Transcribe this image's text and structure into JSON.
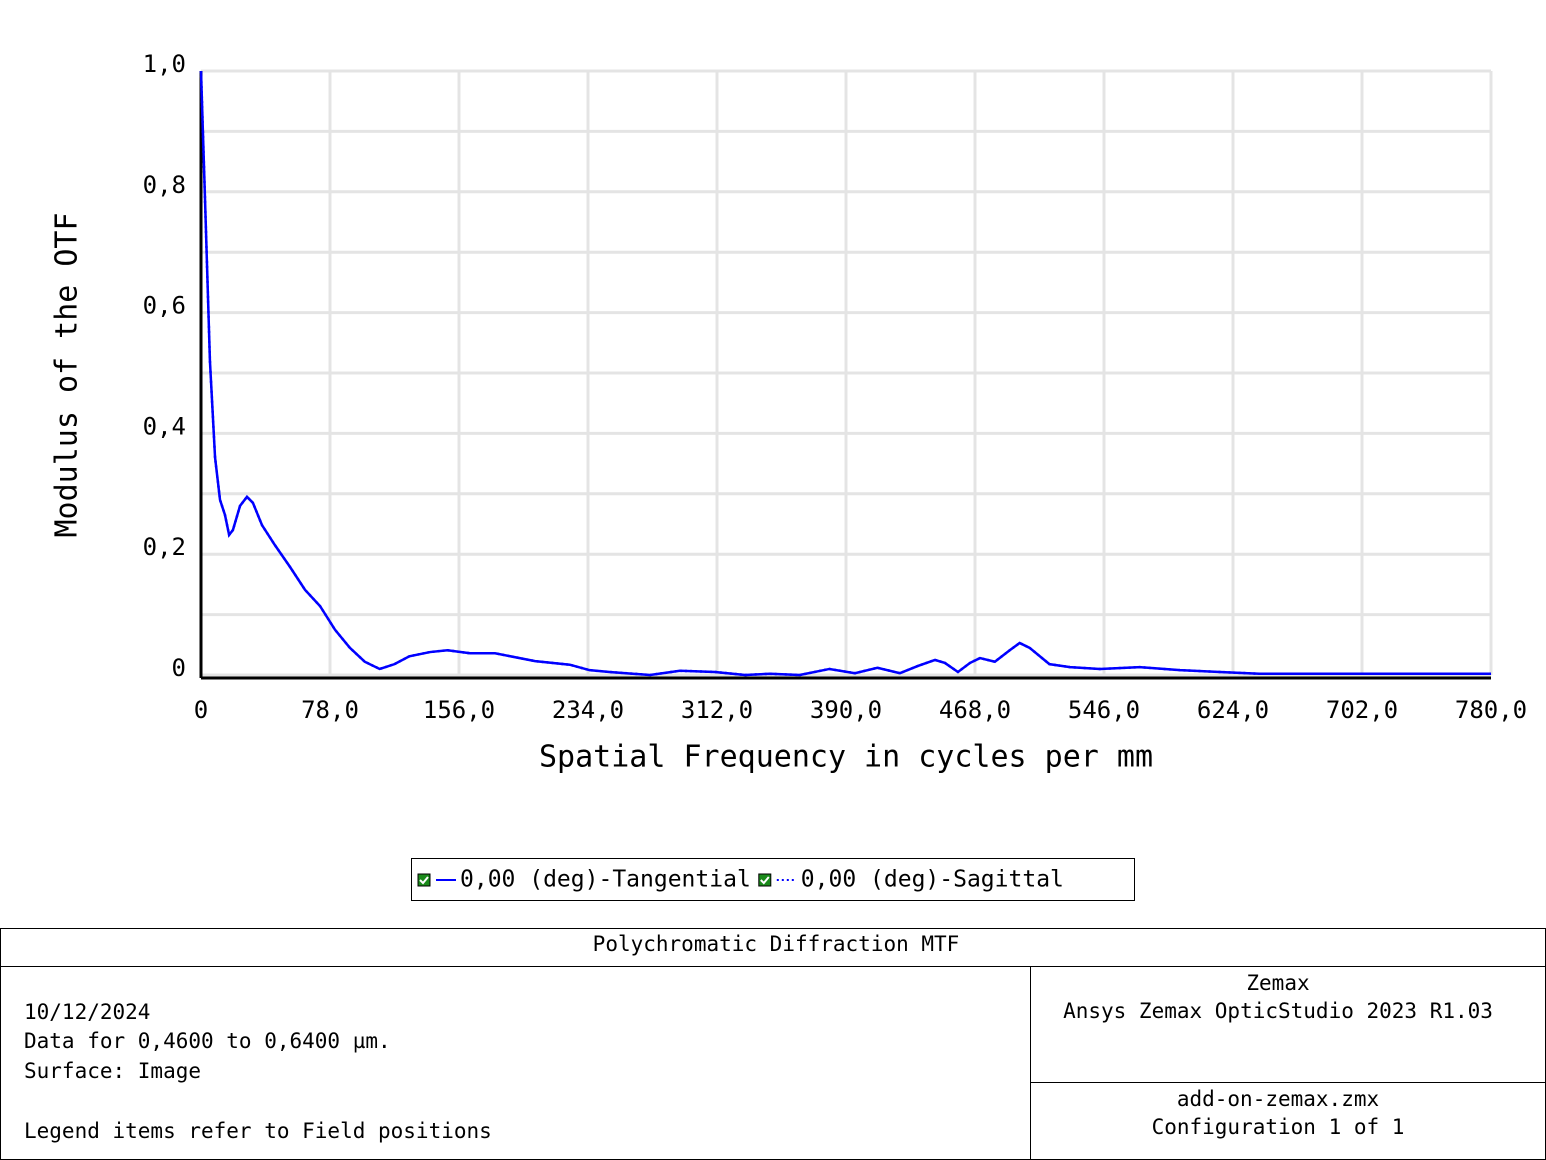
{
  "chart_data": {
    "type": "line",
    "x_label": "Spatial Frequency in cycles per mm",
    "y_label": "Modulus of the OTF",
    "x": [
      0,
      2.4,
      5.4,
      8.5,
      11.5,
      14.5,
      17,
      19.3,
      23.6,
      27.8,
      31.4,
      36.9,
      44.7,
      53.8,
      62.9,
      72,
      81,
      90,
      99,
      108,
      117,
      126,
      138.5,
      149,
      162.6,
      177.8,
      202,
      223,
      235,
      247,
      271.5,
      289.6,
      310.8,
      329,
      344,
      362,
      380,
      395.4,
      409,
      422.6,
      433.5,
      443.8,
      449.8,
      457.7,
      465,
      471,
      480,
      489,
      495,
      501,
      513,
      525.4,
      543.5,
      567.7,
      591.9,
      616,
      640,
      664,
      688.5,
      712.8,
      736.9,
      780
    ],
    "series": [
      {
        "name": "0,00 (deg)-Tangential",
        "color": "#0000ff",
        "style": "solid",
        "values": [
          1.0,
          0.79,
          0.52,
          0.36,
          0.29,
          0.265,
          0.232,
          0.24,
          0.28,
          0.295,
          0.285,
          0.248,
          0.215,
          0.179,
          0.141,
          0.114,
          0.075,
          0.045,
          0.022,
          0.01,
          0.018,
          0.031,
          0.038,
          0.041,
          0.036,
          0.036,
          0.023,
          0.017,
          0.008,
          0.005,
          0.0,
          0.007,
          0.005,
          0.0,
          0.002,
          0.0,
          0.01,
          0.003,
          0.012,
          0.003,
          0.015,
          0.025,
          0.02,
          0.005,
          0.02,
          0.028,
          0.022,
          0.041,
          0.053,
          0.045,
          0.018,
          0.013,
          0.01,
          0.013,
          0.008,
          0.005,
          0.002,
          0.002,
          0.002,
          0.002,
          0.002,
          0.002
        ]
      },
      {
        "name": "0,00 (deg)-Sagittal",
        "color": "#0000ff",
        "style": "dotted",
        "values": [
          1.0,
          0.79,
          0.52,
          0.36,
          0.29,
          0.265,
          0.232,
          0.24,
          0.28,
          0.295,
          0.285,
          0.248,
          0.215,
          0.179,
          0.141,
          0.114,
          0.075,
          0.045,
          0.022,
          0.01,
          0.018,
          0.031,
          0.038,
          0.041,
          0.036,
          0.036,
          0.023,
          0.017,
          0.008,
          0.005,
          0.0,
          0.007,
          0.005,
          0.0,
          0.002,
          0.0,
          0.01,
          0.003,
          0.012,
          0.003,
          0.015,
          0.025,
          0.02,
          0.005,
          0.02,
          0.028,
          0.022,
          0.041,
          0.053,
          0.045,
          0.018,
          0.013,
          0.01,
          0.013,
          0.008,
          0.005,
          0.002,
          0.002,
          0.002,
          0.002,
          0.002,
          0.002
        ]
      }
    ],
    "xlim": [
      0,
      780
    ],
    "xticks": [
      0,
      {
        "value": 78,
        "label": "78,0"
      },
      {
        "value": 156,
        "label": "156,0"
      },
      {
        "value": 234,
        "label": "234,0"
      },
      {
        "value": 312,
        "label": "312,0"
      },
      {
        "value": 390,
        "label": "390,0"
      },
      {
        "value": 468,
        "label": "468,0"
      },
      {
        "value": 546,
        "label": "546,0"
      },
      {
        "value": 624,
        "label": "624,0"
      },
      {
        "value": 702,
        "label": "702,0"
      },
      {
        "value": 780,
        "label": "780,0"
      }
    ],
    "ylim": [
      0,
      1
    ],
    "yticks": [
      0,
      {
        "value": 0.2,
        "label": "0,2"
      },
      {
        "value": 0.4,
        "label": "0,4"
      },
      {
        "value": 0.6,
        "label": "0,6"
      },
      {
        "value": 0.8,
        "label": "0,8"
      },
      {
        "value": 1,
        "label": "1,0"
      }
    ],
    "y_minor_grid": [
      0.1,
      0.3,
      0.5,
      0.7,
      0.9
    ],
    "grid": true,
    "legend": "bottom"
  },
  "footer": {
    "title": "Polychromatic Diffraction MTF",
    "notes": [
      "10/12/2024",
      "Data for 0,4600 to 0,6400 µm.",
      "Surface: Image",
      "Legend items refer to Field positions"
    ],
    "company": [
      "Zemax",
      "Ansys Zemax OpticStudio 2023 R1.03"
    ],
    "file": [
      "add-on-zemax.zmx",
      "Configuration 1 of 1"
    ]
  }
}
